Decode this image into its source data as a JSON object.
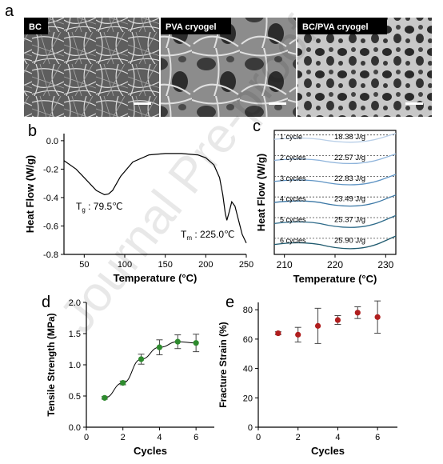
{
  "panel_letters": {
    "a": "a",
    "b": "b",
    "c": "c",
    "d": "d",
    "e": "e"
  },
  "sem_images": [
    {
      "label": "BC"
    },
    {
      "label": "PVA cryogel"
    },
    {
      "label": "BC/PVA cryogel"
    }
  ],
  "watermark": "Journal Pre-proof",
  "chart_data": [
    {
      "panel": "b",
      "type": "line",
      "xlabel": "Temperature (°C)",
      "ylabel": "Heat Flow (W/g)",
      "xlim": [
        25,
        250
      ],
      "ylim": [
        -0.8,
        0.05
      ],
      "xticks": [
        50,
        100,
        150,
        200,
        250
      ],
      "yticks": [
        0.0,
        -0.2,
        -0.4,
        -0.6,
        -0.8
      ],
      "series": [
        {
          "x": [
            25,
            40,
            55,
            65,
            75,
            80,
            85,
            95,
            110,
            130,
            150,
            170,
            190,
            200,
            210,
            217,
            221,
            224,
            226,
            229,
            232,
            236,
            240,
            245,
            250
          ],
          "y": [
            -0.14,
            -0.2,
            -0.29,
            -0.35,
            -0.38,
            -0.375,
            -0.35,
            -0.25,
            -0.15,
            -0.1,
            -0.09,
            -0.09,
            -0.1,
            -0.12,
            -0.17,
            -0.26,
            -0.38,
            -0.51,
            -0.56,
            -0.5,
            -0.43,
            -0.46,
            -0.55,
            -0.66,
            -0.72
          ]
        }
      ],
      "annotations": [
        {
          "text": "Tg : 79.5℃",
          "main": "T",
          "sub": "g",
          "rest": " : 79.5℃"
        },
        {
          "text": "Tm : 225.0℃",
          "main": "T",
          "sub": "m",
          "rest": " : 225.0℃"
        }
      ]
    },
    {
      "panel": "c",
      "type": "line",
      "xlabel": "Temperature (°C)",
      "ylabel": "Heat Flow (W/g)",
      "xlim": [
        208,
        232
      ],
      "xticks": [
        210,
        220,
        230
      ],
      "series": [
        {
          "name": "1 cycle",
          "enthalpy": "18.38 J/g",
          "color": "#b9cfe8"
        },
        {
          "name": "2 cycles",
          "enthalpy": "22.57 J/g",
          "color": "#8fb4db"
        },
        {
          "name": "3 cycles",
          "enthalpy": "22.83 J/g",
          "color": "#5f94c4"
        },
        {
          "name": "4 cycles",
          "enthalpy": "23.49 J/g",
          "color": "#3c78a6"
        },
        {
          "name": "5 cycles",
          "enthalpy": "25.37 J/g",
          "color": "#2e6b8a"
        },
        {
          "name": "6 cycles",
          "enthalpy": "25.90 J/g",
          "color": "#1f5a6e"
        }
      ]
    },
    {
      "panel": "d",
      "type": "scatter",
      "xlabel": "Cycles",
      "ylabel": "Tensile Strength (MPa)",
      "xlim": [
        0,
        7
      ],
      "ylim": [
        0,
        2.0
      ],
      "xticks": [
        0,
        2,
        4,
        6
      ],
      "yticks": [
        0.0,
        0.5,
        1.0,
        1.5,
        2.0
      ],
      "x": [
        1,
        2,
        3,
        4,
        5,
        6
      ],
      "y": [
        0.47,
        0.71,
        1.09,
        1.28,
        1.37,
        1.35
      ],
      "err": [
        0.02,
        0.03,
        0.08,
        0.12,
        0.11,
        0.14
      ],
      "color": "#2e8b2e"
    },
    {
      "panel": "e",
      "type": "scatter",
      "xlabel": "Cycles",
      "ylabel": "Fracture Strain (%)",
      "xlim": [
        0,
        7
      ],
      "ylim": [
        0,
        85
      ],
      "xticks": [
        0,
        2,
        4,
        6
      ],
      "yticks": [
        0,
        20,
        40,
        60,
        80
      ],
      "x": [
        1,
        2,
        3,
        4,
        5,
        6
      ],
      "y": [
        64,
        63,
        69,
        73,
        78,
        75
      ],
      "err": [
        1,
        5,
        12,
        3,
        4,
        11
      ],
      "color": "#b01e1e"
    }
  ]
}
